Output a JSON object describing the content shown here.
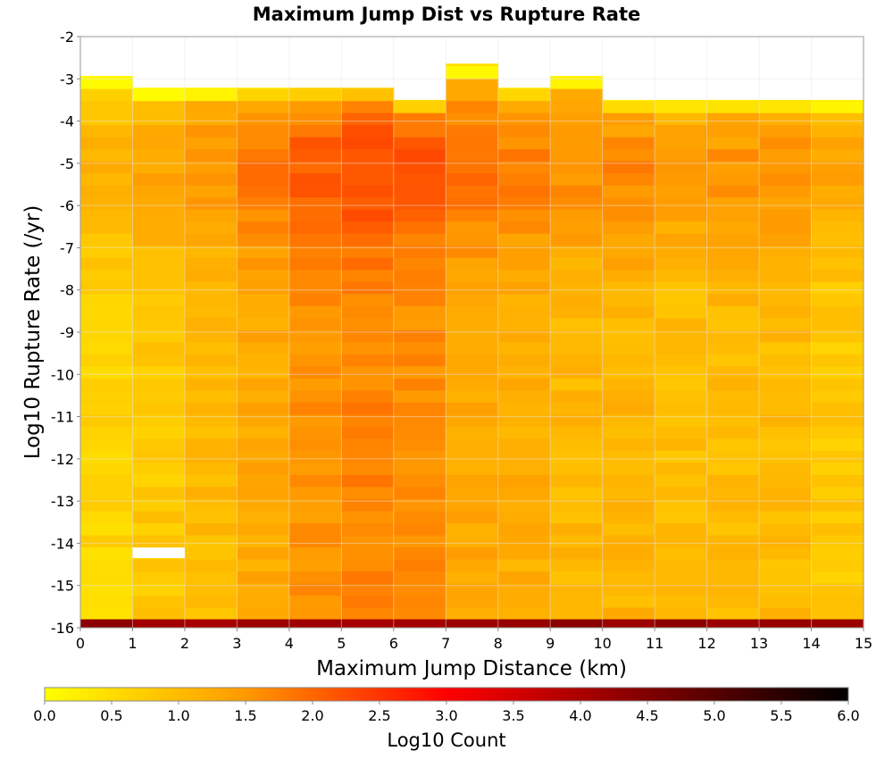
{
  "chart_data": {
    "type": "heatmap",
    "title": "Maximum Jump Dist vs Rupture Rate",
    "xlabel": "Maximum Jump Distance (km)",
    "ylabel": "Log10 Rupture Rate (/yr)",
    "colorbar_label": "Log10 Count",
    "x_ticks": [
      "0",
      "1",
      "2",
      "3",
      "4",
      "5",
      "6",
      "7",
      "8",
      "9",
      "10",
      "11",
      "12",
      "13",
      "14",
      "15"
    ],
    "y_ticks": [
      "-2",
      "-3",
      "-4",
      "-5",
      "-6",
      "-7",
      "-8",
      "-9",
      "-10",
      "-11",
      "-12",
      "-13",
      "-14",
      "-15",
      "-16"
    ],
    "colorbar_ticks": [
      "0.0",
      "0.5",
      "1.0",
      "1.5",
      "2.0",
      "2.5",
      "3.0",
      "3.5",
      "4.0",
      "4.5",
      "5.0",
      "5.5",
      "6.0"
    ],
    "xlim": [
      0,
      15
    ],
    "ylim": [
      -16,
      -2
    ],
    "clim": [
      0,
      6
    ],
    "colormap": [
      "#ffff00",
      "#ff7f00",
      "#ff0000",
      "#800000",
      "#000000"
    ],
    "x_bin_width": 1,
    "y_bin_height": 0.2857,
    "top_value_rows": [
      2.93,
      3.21,
      3.21,
      3.21,
      3.21,
      3.21,
      3.5,
      2.64,
      3.21,
      2.93,
      3.5,
      3.5,
      3.5,
      3.5,
      3.5
    ],
    "bottom_row_value": 4.2,
    "grid": true,
    "colorbar_placement": "bottom"
  }
}
